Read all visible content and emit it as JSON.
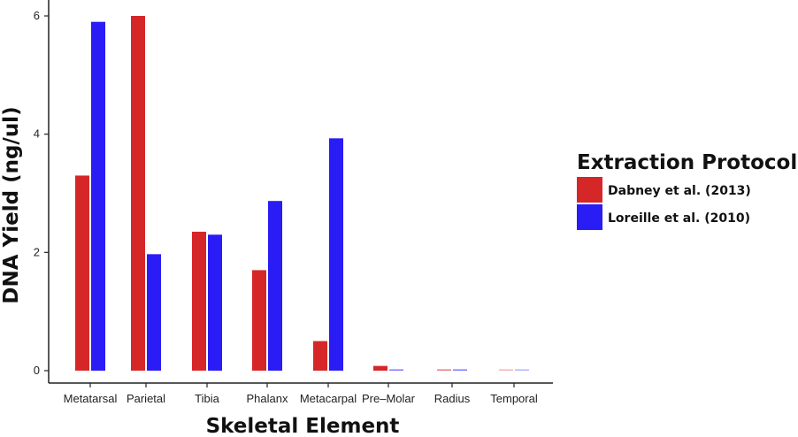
{
  "chart_data": {
    "type": "bar",
    "title": "",
    "xlabel": "Skeletal Element",
    "ylabel": "DNA Yield (ng/ul)",
    "ylim": [
      0,
      6.3
    ],
    "yticks": [
      "0",
      "2",
      "4",
      "6"
    ],
    "grid": false,
    "legend_position": "right",
    "legend_title": "Extraction Protocol",
    "categories": [
      "Metatarsal",
      "Parietal",
      "Tibia",
      "Phalanx",
      "Metacarpal",
      "Pre–Molar",
      "Radius",
      "Temporal"
    ],
    "series": [
      {
        "name": "Dabney et al. (2013)",
        "color": "#d62728",
        "values": [
          3.3,
          6.0,
          2.35,
          1.7,
          0.5,
          0.08,
          0.01,
          0.005
        ]
      },
      {
        "name": "Loreille et al. (2010)",
        "color": "#2a1cf5",
        "values": [
          5.9,
          1.97,
          2.3,
          2.87,
          3.93,
          0.01,
          0.01,
          0.005
        ]
      }
    ]
  }
}
